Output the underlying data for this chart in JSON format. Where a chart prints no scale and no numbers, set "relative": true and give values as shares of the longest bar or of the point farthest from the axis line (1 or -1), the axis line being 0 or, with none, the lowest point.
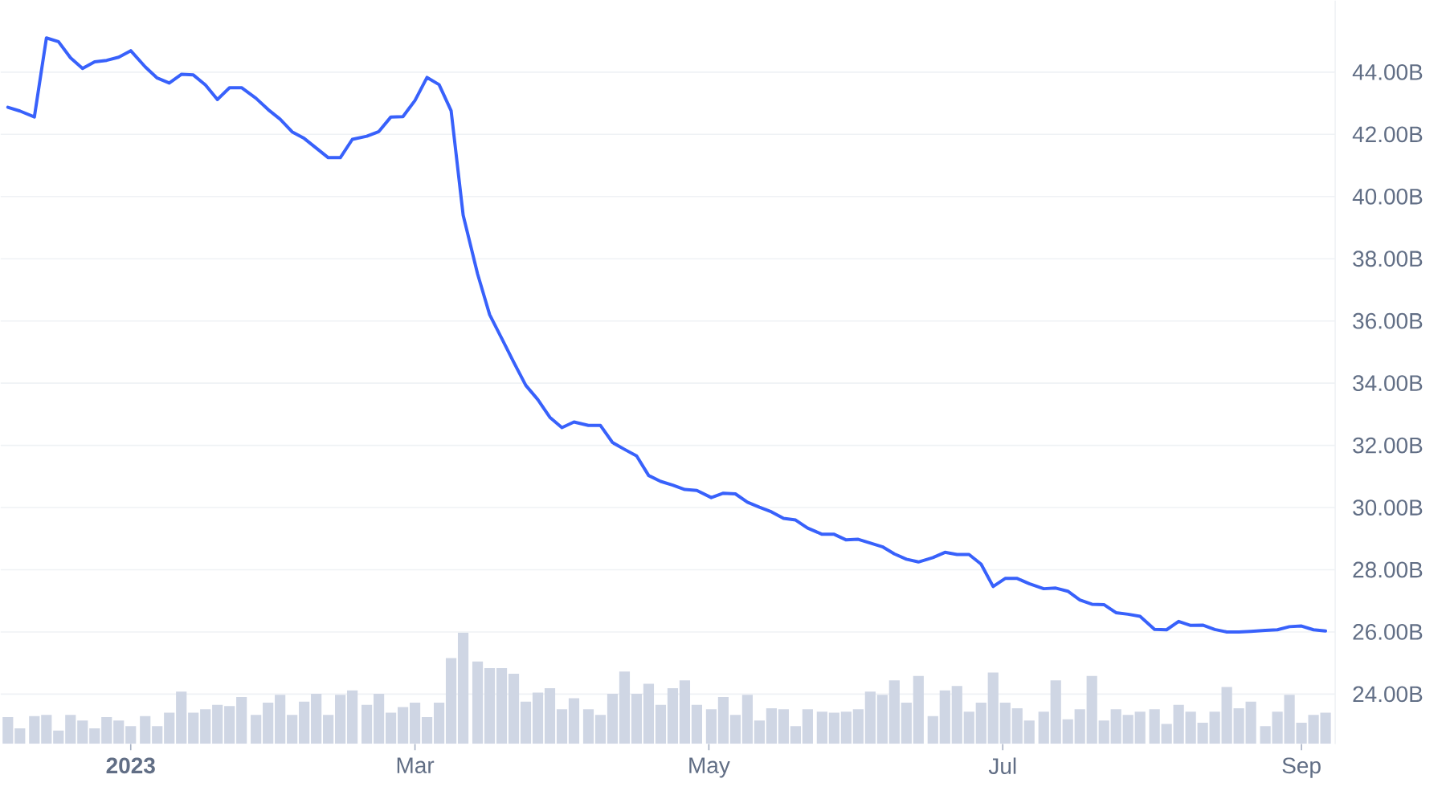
{
  "chart_data": [
    {
      "type": "line",
      "x": [
        "2022-12-06T12:00",
        "2022-12-09",
        "2022-12-12",
        "2022-12-14T12:00",
        "2022-12-17",
        "2022-12-19T12:00",
        "2022-12-22",
        "2022-12-24T12:00",
        "2022-12-27",
        "2022-12-29T12:00",
        "2023-01-01",
        "2023-01-04",
        "2023-01-06T12:00",
        "2023-01-09",
        "2023-01-11T12:00",
        "2023-01-14",
        "2023-01-16T12:00",
        "2023-01-19",
        "2023-01-21T12:00",
        "2023-01-24",
        "2023-01-27",
        "2023-01-29T12:00",
        "2023-02-01",
        "2023-02-03T12:00",
        "2023-02-06",
        "2023-02-08T12:00",
        "2023-02-11",
        "2023-02-13T12:00",
        "2023-02-16",
        "2023-02-19",
        "2023-02-21T12:00",
        "2023-02-24",
        "2023-02-26T12:00",
        "2023-03-01",
        "2023-03-03T12:00",
        "2023-03-06",
        "2023-03-08T12:00",
        "2023-03-11",
        "2023-03-14",
        "2023-03-16T12:00",
        "2023-03-19",
        "2023-03-21T12:00",
        "2023-03-24",
        "2023-03-26T12:00",
        "2023-03-29",
        "2023-03-31T12:00",
        "2023-04-03",
        "2023-04-06",
        "2023-04-08T12:00",
        "2023-04-11",
        "2023-04-13T12:00",
        "2023-04-16",
        "2023-04-18T12:00",
        "2023-04-21",
        "2023-04-23T12:00",
        "2023-04-26",
        "2023-04-28T12:00",
        "2023-05-01T12:00",
        "2023-05-04",
        "2023-05-06T12:00",
        "2023-05-09",
        "2023-05-11T12:00",
        "2023-05-14",
        "2023-05-16T12:00",
        "2023-05-19",
        "2023-05-21T12:00",
        "2023-05-24T12:00",
        "2023-05-27",
        "2023-05-29T12:00",
        "2023-06-01",
        "2023-06-03T12:00",
        "2023-06-06",
        "2023-06-08T12:00",
        "2023-06-11",
        "2023-06-13T12:00",
        "2023-06-16T12:00",
        "2023-06-19",
        "2023-06-21T12:00",
        "2023-06-24",
        "2023-06-26T12:00",
        "2023-06-29",
        "2023-07-01T12:00",
        "2023-07-04",
        "2023-07-06T12:00",
        "2023-07-09T12:00",
        "2023-07-12",
        "2023-07-14T12:00",
        "2023-07-17",
        "2023-07-19T12:00",
        "2023-07-22",
        "2023-07-24T12:00",
        "2023-07-27",
        "2023-07-29T12:00",
        "2023-08-01T12:00",
        "2023-08-04",
        "2023-08-06T12:00",
        "2023-08-09",
        "2023-08-11T12:00",
        "2023-08-14",
        "2023-08-16T12:00",
        "2023-08-19",
        "2023-08-21T12:00",
        "2023-08-24T12:00",
        "2023-08-27",
        "2023-08-29T12:00",
        "2023-09-01",
        "2023-09-03T12:00",
        "2023-09-06"
      ],
      "values": [
        42.87,
        42.75,
        42.56,
        45.1,
        44.98,
        44.46,
        44.12,
        44.33,
        44.38,
        44.48,
        44.69,
        44.17,
        43.81,
        43.65,
        43.93,
        43.91,
        43.59,
        43.12,
        43.5,
        43.5,
        43.16,
        42.8,
        42.49,
        42.08,
        41.87,
        41.56,
        41.25,
        41.25,
        41.84,
        41.94,
        42.09,
        42.56,
        42.57,
        43.09,
        43.83,
        43.6,
        42.76,
        39.4,
        37.51,
        36.2,
        35.44,
        34.67,
        33.93,
        33.47,
        32.9,
        32.57,
        32.75,
        32.64,
        32.64,
        32.09,
        31.87,
        31.66,
        31.03,
        30.84,
        30.72,
        30.58,
        30.55,
        30.32,
        30.46,
        30.44,
        30.17,
        30.01,
        29.86,
        29.65,
        29.6,
        29.34,
        29.14,
        29.14,
        28.96,
        28.98,
        28.86,
        28.74,
        28.51,
        28.34,
        28.25,
        28.39,
        28.56,
        28.49,
        28.49,
        28.18,
        27.46,
        27.72,
        27.72,
        27.55,
        27.39,
        27.41,
        27.31,
        27.03,
        26.89,
        26.88,
        26.62,
        26.57,
        26.5,
        26.08,
        26.07,
        26.34,
        26.21,
        26.22,
        26.08,
        26.0,
        26.0,
        26.02,
        26.05,
        26.07,
        26.17,
        26.19,
        26.07,
        26.03
      ],
      "color": "#3861fb",
      "xlim": [
        "2022-12-05",
        "2023-09-08"
      ],
      "ylim": [
        22.4,
        46.3
      ],
      "xticks": [
        {
          "value": "2023-01-01",
          "label": "2023"
        },
        {
          "value": "2023-03-01",
          "label": "Mar"
        },
        {
          "value": "2023-05-01",
          "label": "May"
        },
        {
          "value": "2023-07-01",
          "label": "Jul"
        },
        {
          "value": "2023-09-01",
          "label": "Sep"
        }
      ],
      "yticks": [
        {
          "value": 24,
          "label": "24.00B"
        },
        {
          "value": 26,
          "label": "26.00B"
        },
        {
          "value": 28,
          "label": "28.00B"
        },
        {
          "value": 30,
          "label": "30.00B"
        },
        {
          "value": 32,
          "label": "32.00B"
        },
        {
          "value": 34,
          "label": "34.00B"
        },
        {
          "value": 36,
          "label": "36.00B"
        },
        {
          "value": 38,
          "label": "38.00B"
        },
        {
          "value": 40,
          "label": "40.00B"
        },
        {
          "value": 42,
          "label": "42.00B"
        },
        {
          "value": 44,
          "label": "44.00B"
        }
      ],
      "grid": "y"
    },
    {
      "type": "bar",
      "relative": true,
      "x": [
        "2022-12-06T12:00",
        "2022-12-09",
        "2022-12-12",
        "2022-12-14T12:00",
        "2022-12-17",
        "2022-12-19T12:00",
        "2022-12-22",
        "2022-12-24T12:00",
        "2022-12-27",
        "2022-12-29T12:00",
        "2023-01-01",
        "2023-01-04",
        "2023-01-06T12:00",
        "2023-01-09",
        "2023-01-11T12:00",
        "2023-01-14",
        "2023-01-16T12:00",
        "2023-01-19",
        "2023-01-21T12:00",
        "2023-01-24",
        "2023-01-27",
        "2023-01-29T12:00",
        "2023-02-01",
        "2023-02-03T12:00",
        "2023-02-06",
        "2023-02-08T12:00",
        "2023-02-11",
        "2023-02-13T12:00",
        "2023-02-16",
        "2023-02-19",
        "2023-02-21T12:00",
        "2023-02-24",
        "2023-02-26T12:00",
        "2023-03-01",
        "2023-03-03T12:00",
        "2023-03-06",
        "2023-03-08T12:00",
        "2023-03-11",
        "2023-03-14",
        "2023-03-16T12:00",
        "2023-03-19",
        "2023-03-21T12:00",
        "2023-03-24",
        "2023-03-26T12:00",
        "2023-03-29",
        "2023-03-31T12:00",
        "2023-04-03",
        "2023-04-06",
        "2023-04-08T12:00",
        "2023-04-11",
        "2023-04-13T12:00",
        "2023-04-16",
        "2023-04-18T12:00",
        "2023-04-21",
        "2023-04-23T12:00",
        "2023-04-26",
        "2023-04-28T12:00",
        "2023-05-01T12:00",
        "2023-05-04",
        "2023-05-06T12:00",
        "2023-05-09",
        "2023-05-11T12:00",
        "2023-05-14",
        "2023-05-16T12:00",
        "2023-05-19",
        "2023-05-21T12:00",
        "2023-05-24T12:00",
        "2023-05-27",
        "2023-05-29T12:00",
        "2023-06-01",
        "2023-06-03T12:00",
        "2023-06-06",
        "2023-06-08T12:00",
        "2023-06-11",
        "2023-06-13T12:00",
        "2023-06-16T12:00",
        "2023-06-19",
        "2023-06-21T12:00",
        "2023-06-24",
        "2023-06-26T12:00",
        "2023-06-29",
        "2023-07-01T12:00",
        "2023-07-04",
        "2023-07-06T12:00",
        "2023-07-09T12:00",
        "2023-07-12",
        "2023-07-14T12:00",
        "2023-07-17",
        "2023-07-19T12:00",
        "2023-07-22",
        "2023-07-24T12:00",
        "2023-07-27",
        "2023-07-29T12:00",
        "2023-08-01T12:00",
        "2023-08-04",
        "2023-08-06T12:00",
        "2023-08-09",
        "2023-08-11T12:00",
        "2023-08-14",
        "2023-08-16T12:00",
        "2023-08-19",
        "2023-08-21T12:00",
        "2023-08-24T12:00",
        "2023-08-27",
        "2023-08-29T12:00",
        "2023-09-01",
        "2023-09-03T12:00",
        "2023-09-06"
      ],
      "values": [
        0.24,
        0.14,
        0.25,
        0.26,
        0.12,
        0.26,
        0.21,
        0.14,
        0.24,
        0.21,
        0.16,
        0.25,
        0.16,
        0.28,
        0.47,
        0.28,
        0.31,
        0.35,
        0.34,
        0.42,
        0.26,
        0.37,
        0.44,
        0.26,
        0.38,
        0.45,
        0.26,
        0.44,
        0.48,
        0.35,
        0.45,
        0.28,
        0.33,
        0.37,
        0.24,
        0.37,
        0.77,
        1,
        0.74,
        0.68,
        0.68,
        0.63,
        0.38,
        0.46,
        0.5,
        0.31,
        0.41,
        0.31,
        0.26,
        0.45,
        0.65,
        0.45,
        0.54,
        0.35,
        0.5,
        0.57,
        0.35,
        0.31,
        0.42,
        0.26,
        0.44,
        0.21,
        0.32,
        0.31,
        0.16,
        0.31,
        0.29,
        0.28,
        0.29,
        0.31,
        0.47,
        0.44,
        0.57,
        0.37,
        0.61,
        0.25,
        0.48,
        0.52,
        0.29,
        0.37,
        0.64,
        0.37,
        0.32,
        0.21,
        0.29,
        0.57,
        0.22,
        0.31,
        0.61,
        0.21,
        0.31,
        0.26,
        0.29,
        0.31,
        0.18,
        0.35,
        0.29,
        0.19,
        0.29,
        0.51,
        0.32,
        0.38,
        0.16,
        0.29,
        0.44,
        0.19,
        0.26,
        0.28
      ],
      "color": "#cfd6e4",
      "xlim": [
        "2022-12-05",
        "2023-09-08"
      ],
      "tick_labels": false
    }
  ]
}
